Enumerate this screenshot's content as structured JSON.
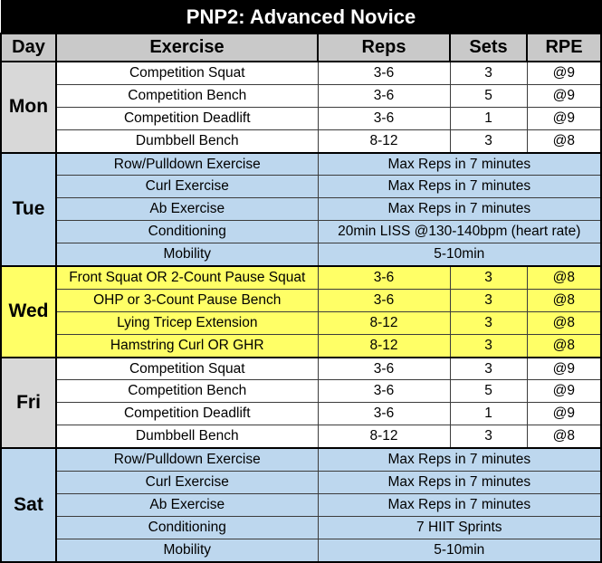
{
  "title": "PNP2: Advanced Novice",
  "headers": {
    "day": "Day",
    "exercise": "Exercise",
    "reps": "Reps",
    "sets": "Sets",
    "rpe": "RPE"
  },
  "groups": [
    {
      "day": "Mon",
      "color": "white",
      "rows": [
        {
          "exercise": "Competition Squat",
          "reps": "3-6",
          "sets": "3",
          "rpe": "@9"
        },
        {
          "exercise": "Competition Bench",
          "reps": "3-6",
          "sets": "5",
          "rpe": "@9"
        },
        {
          "exercise": "Competition Deadlift",
          "reps": "3-6",
          "sets": "1",
          "rpe": "@9"
        },
        {
          "exercise": "Dumbbell Bench",
          "reps": "8-12",
          "sets": "3",
          "rpe": "@8"
        }
      ]
    },
    {
      "day": "Tue",
      "color": "blue",
      "rows": [
        {
          "exercise": "Row/Pulldown Exercise",
          "merged": "Max Reps in 7 minutes"
        },
        {
          "exercise": "Curl Exercise",
          "merged": "Max Reps in 7 minutes"
        },
        {
          "exercise": "Ab Exercise",
          "merged": "Max Reps in 7 minutes"
        },
        {
          "exercise": "Conditioning",
          "merged": "20min LISS @130-140bpm (heart rate)"
        },
        {
          "exercise": "Mobility",
          "merged": "5-10min"
        }
      ]
    },
    {
      "day": "Wed",
      "color": "yellow",
      "rows": [
        {
          "exercise": "Front Squat OR 2-Count Pause Squat",
          "reps": "3-6",
          "sets": "3",
          "rpe": "@8"
        },
        {
          "exercise": "OHP or 3-Count Pause Bench",
          "reps": "3-6",
          "sets": "3",
          "rpe": "@8"
        },
        {
          "exercise": "Lying Tricep Extension",
          "reps": "8-12",
          "sets": "3",
          "rpe": "@8"
        },
        {
          "exercise": "Hamstring Curl OR GHR",
          "reps": "8-12",
          "sets": "3",
          "rpe": "@8"
        }
      ]
    },
    {
      "day": "Fri",
      "color": "white",
      "rows": [
        {
          "exercise": "Competition Squat",
          "reps": "3-6",
          "sets": "3",
          "rpe": "@9"
        },
        {
          "exercise": "Competition Bench",
          "reps": "3-6",
          "sets": "5",
          "rpe": "@9"
        },
        {
          "exercise": "Competition Deadlift",
          "reps": "3-6",
          "sets": "1",
          "rpe": "@9"
        },
        {
          "exercise": "Dumbbell Bench",
          "reps": "8-12",
          "sets": "3",
          "rpe": "@8"
        }
      ]
    },
    {
      "day": "Sat",
      "color": "blue",
      "rows": [
        {
          "exercise": "Row/Pulldown Exercise",
          "merged": "Max Reps in 7 minutes"
        },
        {
          "exercise": "Curl Exercise",
          "merged": "Max Reps in 7 minutes"
        },
        {
          "exercise": "Ab Exercise",
          "merged": "Max Reps in 7 minutes"
        },
        {
          "exercise": "Conditioning",
          "merged": "7 HIIT Sprints"
        },
        {
          "exercise": "Mobility",
          "merged": "5-10min"
        }
      ]
    }
  ]
}
